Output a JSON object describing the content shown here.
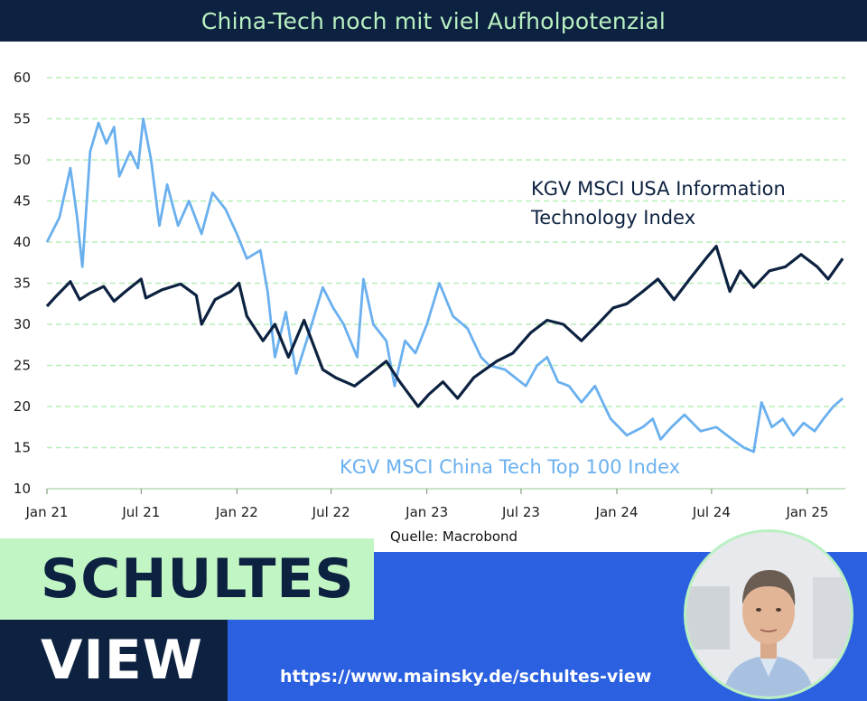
{
  "header": {
    "title": "China-Tech noch mit viel Aufholpotenzial"
  },
  "source": "Quelle: Macrobond",
  "branding": {
    "line1": "SCHULTES",
    "line2": "VIEW",
    "url": "https://www.mainsky.de/schultes-view"
  },
  "colors": {
    "header_bg": "#0d2240",
    "title": "#b9f0c2",
    "brand_green": "#c2f5c4",
    "brand_blue": "#2b61e0",
    "usa_line": "#0d2240",
    "china_line": "#6ab0ef",
    "grid": "#b7eeb7"
  },
  "chart_data": {
    "type": "line",
    "x_ticks": [
      "Jan 21",
      "Jul 21",
      "Jan 22",
      "Jul 22",
      "Jan 23",
      "Jul 23",
      "Jan 24",
      "Jul 24",
      "Jan 25"
    ],
    "y_ticks": [
      10,
      15,
      20,
      25,
      30,
      35,
      40,
      45,
      50,
      55,
      60
    ],
    "ylim": [
      10,
      60
    ],
    "xlim": [
      "2021-01-01",
      "2025-03-15"
    ],
    "grid": "horizontal dashed",
    "series": [
      {
        "name": "KGV MSCI USA Information Technology Index",
        "label_lines": [
          "KGV MSCI USA Information",
          "Technology Index"
        ],
        "color": "#0d2240",
        "points": [
          [
            "2021-01-01",
            32.2
          ],
          [
            "2021-01-20",
            33.5
          ],
          [
            "2021-02-15",
            35.2
          ],
          [
            "2021-03-05",
            33.0
          ],
          [
            "2021-03-25",
            33.8
          ],
          [
            "2021-04-20",
            34.6
          ],
          [
            "2021-05-10",
            32.8
          ],
          [
            "2021-06-01",
            34.0
          ],
          [
            "2021-07-01",
            35.5
          ],
          [
            "2021-07-10",
            33.2
          ],
          [
            "2021-08-10",
            34.2
          ],
          [
            "2021-09-15",
            34.9
          ],
          [
            "2021-10-15",
            33.5
          ],
          [
            "2021-10-25",
            30.0
          ],
          [
            "2021-11-20",
            33.0
          ],
          [
            "2021-12-20",
            34.0
          ],
          [
            "2022-01-05",
            35.0
          ],
          [
            "2022-01-20",
            31.0
          ],
          [
            "2022-02-20",
            28.0
          ],
          [
            "2022-03-15",
            30.0
          ],
          [
            "2022-04-10",
            26.0
          ],
          [
            "2022-05-10",
            30.5
          ],
          [
            "2022-06-15",
            24.5
          ],
          [
            "2022-07-10",
            23.5
          ],
          [
            "2022-08-15",
            22.5
          ],
          [
            "2022-09-15",
            24.0
          ],
          [
            "2022-10-15",
            25.5
          ],
          [
            "2022-11-10",
            23.0
          ],
          [
            "2022-12-15",
            20.0
          ],
          [
            "2023-01-05",
            21.5
          ],
          [
            "2023-02-01",
            23.0
          ],
          [
            "2023-03-01",
            21.0
          ],
          [
            "2023-04-01",
            23.5
          ],
          [
            "2023-05-15",
            25.5
          ],
          [
            "2023-06-15",
            26.5
          ],
          [
            "2023-07-20",
            29.0
          ],
          [
            "2023-08-20",
            30.5
          ],
          [
            "2023-09-20",
            30.0
          ],
          [
            "2023-10-25",
            28.0
          ],
          [
            "2023-11-25",
            30.0
          ],
          [
            "2023-12-25",
            32.0
          ],
          [
            "2024-01-20",
            32.5
          ],
          [
            "2024-02-20",
            34.0
          ],
          [
            "2024-03-20",
            35.5
          ],
          [
            "2024-04-20",
            33.0
          ],
          [
            "2024-05-20",
            35.5
          ],
          [
            "2024-06-20",
            38.0
          ],
          [
            "2024-07-10",
            39.5
          ],
          [
            "2024-08-05",
            34.0
          ],
          [
            "2024-08-25",
            36.5
          ],
          [
            "2024-09-20",
            34.5
          ],
          [
            "2024-10-20",
            36.5
          ],
          [
            "2024-11-20",
            37.0
          ],
          [
            "2024-12-20",
            38.5
          ],
          [
            "2025-01-20",
            37.0
          ],
          [
            "2025-02-10",
            35.5
          ],
          [
            "2025-03-10",
            38.0
          ]
        ]
      },
      {
        "name": "KGV MSCI China Tech Top 100 Index",
        "label_lines": [
          "KGV MSCI China Tech Top 100 Index"
        ],
        "color": "#6ab0ef",
        "points": [
          [
            "2021-01-01",
            40.0
          ],
          [
            "2021-01-25",
            43.0
          ],
          [
            "2021-02-15",
            49.0
          ],
          [
            "2021-02-28",
            43.0
          ],
          [
            "2021-03-10",
            37.0
          ],
          [
            "2021-03-25",
            51.0
          ],
          [
            "2021-04-10",
            54.5
          ],
          [
            "2021-04-25",
            52.0
          ],
          [
            "2021-05-10",
            54.0
          ],
          [
            "2021-05-20",
            48.0
          ],
          [
            "2021-06-10",
            51.0
          ],
          [
            "2021-06-25",
            49.0
          ],
          [
            "2021-07-05",
            55.0
          ],
          [
            "2021-07-20",
            50.0
          ],
          [
            "2021-08-05",
            42.0
          ],
          [
            "2021-08-20",
            47.0
          ],
          [
            "2021-09-10",
            42.0
          ],
          [
            "2021-10-01",
            45.0
          ],
          [
            "2021-10-25",
            41.0
          ],
          [
            "2021-11-15",
            46.0
          ],
          [
            "2021-12-10",
            44.0
          ],
          [
            "2022-01-01",
            41.0
          ],
          [
            "2022-01-20",
            38.0
          ],
          [
            "2022-02-15",
            39.0
          ],
          [
            "2022-03-01",
            34.0
          ],
          [
            "2022-03-15",
            26.0
          ],
          [
            "2022-04-05",
            31.5
          ],
          [
            "2022-04-25",
            24.0
          ],
          [
            "2022-05-20",
            29.0
          ],
          [
            "2022-06-15",
            34.5
          ],
          [
            "2022-07-05",
            32.0
          ],
          [
            "2022-07-25",
            30.0
          ],
          [
            "2022-08-20",
            26.0
          ],
          [
            "2022-09-01",
            35.5
          ],
          [
            "2022-09-20",
            30.0
          ],
          [
            "2022-10-15",
            28.0
          ],
          [
            "2022-10-31",
            22.5
          ],
          [
            "2022-11-20",
            28.0
          ],
          [
            "2022-12-10",
            26.5
          ],
          [
            "2023-01-01",
            30.0
          ],
          [
            "2023-01-25",
            35.0
          ],
          [
            "2023-02-20",
            31.0
          ],
          [
            "2023-03-20",
            29.5
          ],
          [
            "2023-04-15",
            26.0
          ],
          [
            "2023-05-01",
            25.0
          ],
          [
            "2023-05-31",
            24.5
          ],
          [
            "2023-06-20",
            23.5
          ],
          [
            "2023-07-10",
            22.5
          ],
          [
            "2023-08-01",
            25.0
          ],
          [
            "2023-08-20",
            26.0
          ],
          [
            "2023-09-10",
            23.0
          ],
          [
            "2023-10-01",
            22.5
          ],
          [
            "2023-10-25",
            20.5
          ],
          [
            "2023-11-20",
            22.5
          ],
          [
            "2023-12-20",
            18.5
          ],
          [
            "2024-01-20",
            16.5
          ],
          [
            "2024-02-20",
            17.5
          ],
          [
            "2024-03-10",
            18.5
          ],
          [
            "2024-03-25",
            16.0
          ],
          [
            "2024-04-15",
            17.5
          ],
          [
            "2024-05-10",
            19.0
          ],
          [
            "2024-06-10",
            17.0
          ],
          [
            "2024-07-10",
            17.5
          ],
          [
            "2024-08-10",
            16.0
          ],
          [
            "2024-09-01",
            15.0
          ],
          [
            "2024-09-20",
            14.5
          ],
          [
            "2024-10-05",
            20.5
          ],
          [
            "2024-10-25",
            17.5
          ],
          [
            "2024-11-15",
            18.5
          ],
          [
            "2024-12-05",
            16.5
          ],
          [
            "2024-12-25",
            18.0
          ],
          [
            "2025-01-15",
            17.0
          ],
          [
            "2025-02-01",
            18.5
          ],
          [
            "2025-02-20",
            20.0
          ],
          [
            "2025-03-10",
            21.0
          ]
        ]
      }
    ]
  }
}
